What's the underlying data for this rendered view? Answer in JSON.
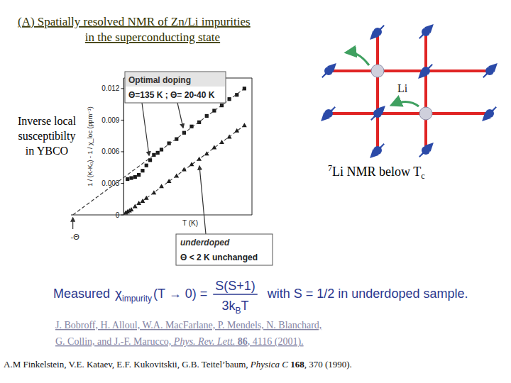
{
  "slide": {
    "title": [
      "(A) Spatially resolved NMR of Zn/Li impurities",
      "in the superconducting state"
    ],
    "side_label": [
      "Inverse local",
      "susceptibilty",
      "in YBCO"
    ],
    "diagram": {
      "li_label": "Li",
      "caption": {
        "sup": "7",
        "main": "Li NMR below T",
        "sub": "c"
      }
    },
    "formula": {
      "lead": "Measured ",
      "chi": "χ",
      "chi_sub": "impurity",
      "arg": "(T → 0) =",
      "numerator": "S(S+1)",
      "denominator": "3k",
      "denominator_sub": "B",
      "denominator_end": "T",
      "tail": "with S = 1/2 in underdoped sample."
    },
    "references": [
      [
        [
          {
            "text": "J. Bobroff, H. Alloul, W.A. MacFarlane, P. Mendels, N. Blanchard,"
          }
        ],
        [
          {
            "text": "G. Collin, and J.-F. Marucco, "
          },
          {
            "text": "Phys. Rev. Lett.",
            "style": "italic"
          },
          {
            "text": " 86",
            "style": "bold"
          },
          {
            "text": ", 4116 (2001)."
          }
        ]
      ],
      [
        [
          {
            "text": "A.M Finkelstein, V.E. Kataev, E.F. Kukovitskii, G.B. Teitel’baum, "
          },
          {
            "text": "Physica C",
            "style": "italic"
          },
          {
            "text": " 168",
            "style": "bold"
          },
          {
            "text": ", 370 (1990)."
          }
        ]
      ]
    ]
  },
  "chart_data": {
    "type": "scatter",
    "x_label": "T (K)",
    "y_label": "1 / (K-K₀) - 1 / χ_loc (ppm⁻¹)",
    "xlim": [
      -140,
      340
    ],
    "ylim": [
      0,
      0.013
    ],
    "yticks": [
      0,
      0.003,
      0.006,
      0.009,
      0.012
    ],
    "tick_labels": "y",
    "series": [
      {
        "type": "scatter",
        "marker": "square",
        "color": "#1a1a1a",
        "x": [
          10,
          20,
          30,
          40,
          50,
          60,
          70,
          80,
          90,
          100,
          120,
          140,
          160,
          180,
          200,
          220,
          240,
          260,
          280,
          300,
          320
        ],
        "values": [
          0.0034,
          0.0035,
          0.0036,
          0.0038,
          0.0042,
          0.0047,
          0.0052,
          0.0057,
          0.0059,
          0.0062,
          0.0068,
          0.0072,
          0.0078,
          0.0084,
          0.0088,
          0.0094,
          0.0099,
          0.0104,
          0.011,
          0.0114,
          0.012
        ]
      },
      {
        "type": "scatter",
        "marker": "triangle",
        "color": "#1a1a1a",
        "x": [
          5,
          10,
          15,
          20,
          30,
          40,
          50,
          60,
          80,
          100,
          120,
          140,
          160,
          180,
          200,
          220,
          240,
          260,
          280,
          300,
          320
        ],
        "values": [
          0.0002,
          0.0003,
          0.0004,
          0.0005,
          0.0008,
          0.0011,
          0.0013,
          0.0016,
          0.0021,
          0.0027,
          0.0032,
          0.0037,
          0.0043,
          0.0048,
          0.0053,
          0.0058,
          0.0064,
          0.0069,
          0.0074,
          0.008,
          0.0085
        ]
      },
      {
        "type": "line",
        "line_style": "dashed",
        "color": "#333333",
        "x": [
          -135,
          320
        ],
        "values": [
          0,
          0.012
        ]
      },
      {
        "type": "line",
        "line_style": "dashed",
        "color": "#333333",
        "x": [
          0,
          320
        ],
        "values": [
          0,
          0.0085
        ]
      }
    ],
    "annotations": [
      {
        "lines": [
          "Optimal doping",
          "Θ=135 K ; Θ= 20-40 K"
        ]
      },
      {
        "lines": [
          "underdoped",
          "Θ < 2 K unchanged"
        ]
      },
      {
        "text": "-Θ",
        "x": -135
      }
    ]
  }
}
